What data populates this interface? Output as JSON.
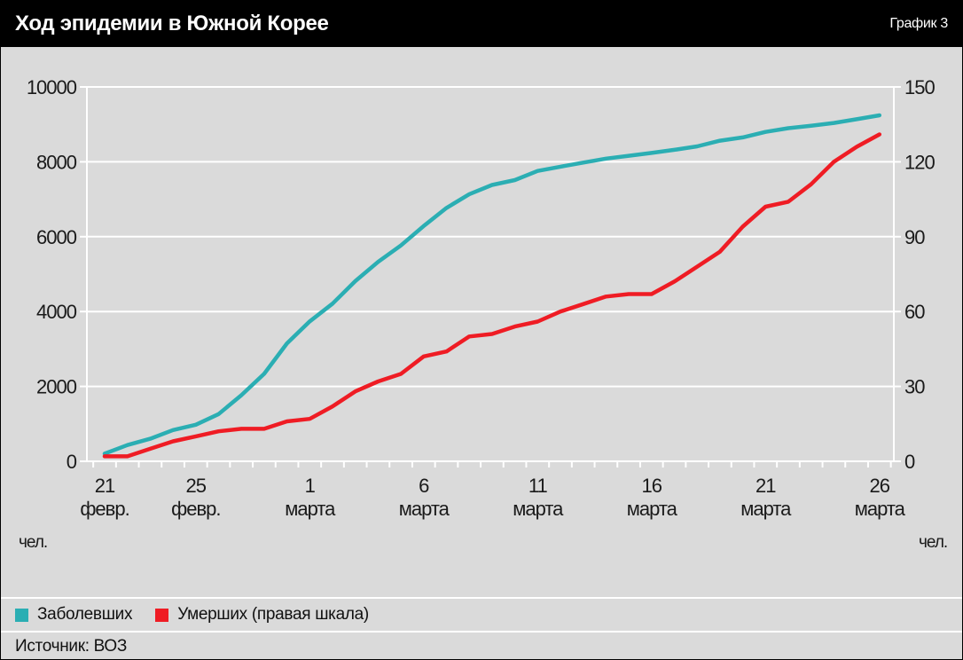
{
  "header": {
    "title": "Ход эпидемии в Южной Корее",
    "chart_number": "График 3"
  },
  "units": {
    "left": "чел.",
    "right": "чел."
  },
  "legend": {
    "items": [
      {
        "label": "Заболевших",
        "color": "#2BAEB3"
      },
      {
        "label": "Умерших (правая шкала)",
        "color": "#EF1C24"
      }
    ]
  },
  "source": "Источник: ВОЗ",
  "chart_data": {
    "type": "line",
    "points_per_series": 35,
    "x_is_daily_dates": true,
    "x_tick_labels": [
      {
        "index": 0,
        "day": "21",
        "month": "февр."
      },
      {
        "index": 4,
        "day": "25",
        "month": "февр."
      },
      {
        "index": 9,
        "day": "1",
        "month": "марта"
      },
      {
        "index": 14,
        "day": "6",
        "month": "марта"
      },
      {
        "index": 19,
        "day": "11",
        "month": "марта"
      },
      {
        "index": 24,
        "day": "16",
        "month": "марта"
      },
      {
        "index": 29,
        "day": "21",
        "month": "марта"
      },
      {
        "index": 34,
        "day": "26",
        "month": "марта"
      }
    ],
    "left_axis": {
      "min": 0,
      "max": 10000,
      "step": 2000,
      "unit": "чел."
    },
    "right_axis": {
      "min": 0,
      "max": 150,
      "step": 30,
      "unit": "чел."
    },
    "grid": true,
    "legend_position": "bottom",
    "series": [
      {
        "name": "Заболевших",
        "axis": "left",
        "color": "#2BAEB3",
        "values": [
          204,
          433,
          602,
          833,
          977,
          1261,
          1766,
          2337,
          3150,
          3736,
          4212,
          4812,
          5328,
          5766,
          6284,
          6767,
          7134,
          7382,
          7513,
          7755,
          7869,
          7979,
          8086,
          8162,
          8236,
          8320,
          8413,
          8565,
          8652,
          8799,
          8897,
          8961,
          9037,
          9137,
          9241
        ]
      },
      {
        "name": "Умерших (правая шкала)",
        "axis": "right",
        "color": "#EF1C24",
        "values": [
          2,
          2,
          5,
          8,
          10,
          12,
          13,
          13,
          16,
          17,
          22,
          28,
          32,
          35,
          42,
          44,
          50,
          51,
          54,
          56,
          60,
          63,
          66,
          67,
          67,
          72,
          78,
          84,
          94,
          102,
          104,
          111,
          120,
          126,
          131
        ]
      }
    ]
  }
}
